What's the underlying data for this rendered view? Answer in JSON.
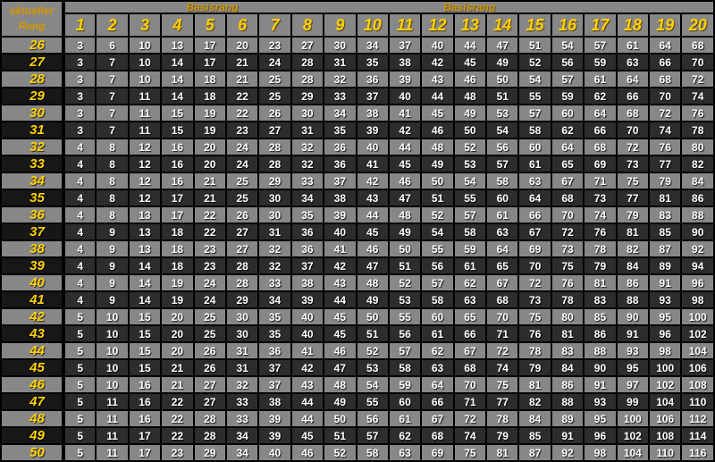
{
  "header": {
    "corner_line1": "aktueller",
    "corner_line2": "Rang",
    "band_labels": [
      "Basisrang",
      "Basisrang"
    ],
    "columns": [
      "1",
      "2",
      "3",
      "4",
      "5",
      "6",
      "7",
      "8",
      "9",
      "10",
      "11",
      "12",
      "13",
      "14",
      "15",
      "16",
      "17",
      "18",
      "19",
      "20"
    ]
  },
  "rows": [
    {
      "rank": "26",
      "values": [
        3,
        6,
        10,
        13,
        17,
        20,
        23,
        27,
        30,
        34,
        37,
        40,
        44,
        47,
        51,
        54,
        57,
        61,
        64,
        68
      ]
    },
    {
      "rank": "27",
      "values": [
        3,
        7,
        10,
        14,
        17,
        21,
        24,
        28,
        31,
        35,
        38,
        42,
        45,
        49,
        52,
        56,
        59,
        63,
        66,
        70
      ]
    },
    {
      "rank": "28",
      "values": [
        3,
        7,
        10,
        14,
        18,
        21,
        25,
        28,
        32,
        36,
        39,
        43,
        46,
        50,
        54,
        57,
        61,
        64,
        68,
        72
      ]
    },
    {
      "rank": "29",
      "values": [
        3,
        7,
        11,
        14,
        18,
        22,
        25,
        29,
        33,
        37,
        40,
        44,
        48,
        51,
        55,
        59,
        62,
        66,
        70,
        74
      ]
    },
    {
      "rank": "30",
      "values": [
        3,
        7,
        11,
        15,
        19,
        22,
        26,
        30,
        34,
        38,
        41,
        45,
        49,
        53,
        57,
        60,
        64,
        68,
        72,
        76
      ]
    },
    {
      "rank": "31",
      "values": [
        3,
        7,
        11,
        15,
        19,
        23,
        27,
        31,
        35,
        39,
        42,
        46,
        50,
        54,
        58,
        62,
        66,
        70,
        74,
        78
      ]
    },
    {
      "rank": "32",
      "values": [
        4,
        8,
        12,
        16,
        20,
        24,
        28,
        32,
        36,
        40,
        44,
        48,
        52,
        56,
        60,
        64,
        68,
        72,
        76,
        80
      ]
    },
    {
      "rank": "33",
      "values": [
        4,
        8,
        12,
        16,
        20,
        24,
        28,
        32,
        36,
        41,
        45,
        49,
        53,
        57,
        61,
        65,
        69,
        73,
        77,
        82
      ]
    },
    {
      "rank": "34",
      "values": [
        4,
        8,
        12,
        16,
        21,
        25,
        29,
        33,
        37,
        42,
        46,
        50,
        54,
        58,
        63,
        67,
        71,
        75,
        79,
        84
      ]
    },
    {
      "rank": "35",
      "values": [
        4,
        8,
        12,
        17,
        21,
        25,
        30,
        34,
        38,
        43,
        47,
        51,
        55,
        60,
        64,
        68,
        73,
        77,
        81,
        86
      ]
    },
    {
      "rank": "36",
      "values": [
        4,
        8,
        13,
        17,
        22,
        26,
        30,
        35,
        39,
        44,
        48,
        52,
        57,
        61,
        66,
        70,
        74,
        79,
        83,
        88
      ]
    },
    {
      "rank": "37",
      "values": [
        4,
        9,
        13,
        18,
        22,
        27,
        31,
        36,
        40,
        45,
        49,
        54,
        58,
        63,
        67,
        72,
        76,
        81,
        85,
        90
      ]
    },
    {
      "rank": "38",
      "values": [
        4,
        9,
        13,
        18,
        23,
        27,
        32,
        36,
        41,
        46,
        50,
        55,
        59,
        64,
        69,
        73,
        78,
        82,
        87,
        92
      ]
    },
    {
      "rank": "39",
      "values": [
        4,
        9,
        14,
        18,
        23,
        28,
        32,
        37,
        42,
        47,
        51,
        56,
        61,
        65,
        70,
        75,
        79,
        84,
        89,
        94
      ]
    },
    {
      "rank": "40",
      "values": [
        4,
        9,
        14,
        19,
        24,
        28,
        33,
        38,
        43,
        48,
        52,
        57,
        62,
        67,
        72,
        76,
        81,
        86,
        91,
        96
      ]
    },
    {
      "rank": "41",
      "values": [
        4,
        9,
        14,
        19,
        24,
        29,
        34,
        39,
        44,
        49,
        53,
        58,
        63,
        68,
        73,
        78,
        83,
        88,
        93,
        98
      ]
    },
    {
      "rank": "42",
      "values": [
        5,
        10,
        15,
        20,
        25,
        30,
        35,
        40,
        45,
        50,
        55,
        60,
        65,
        70,
        75,
        80,
        85,
        90,
        95,
        100
      ]
    },
    {
      "rank": "43",
      "values": [
        5,
        10,
        15,
        20,
        25,
        30,
        35,
        40,
        45,
        51,
        56,
        61,
        66,
        71,
        76,
        81,
        86,
        91,
        96,
        102
      ]
    },
    {
      "rank": "44",
      "values": [
        5,
        10,
        15,
        20,
        26,
        31,
        36,
        41,
        46,
        52,
        57,
        62,
        67,
        72,
        78,
        83,
        88,
        93,
        98,
        104
      ]
    },
    {
      "rank": "45",
      "values": [
        5,
        10,
        15,
        21,
        26,
        31,
        37,
        42,
        47,
        53,
        58,
        63,
        68,
        74,
        79,
        84,
        90,
        95,
        100,
        106
      ]
    },
    {
      "rank": "46",
      "values": [
        5,
        10,
        16,
        21,
        27,
        32,
        37,
        43,
        48,
        54,
        59,
        64,
        70,
        75,
        81,
        86,
        91,
        97,
        102,
        108
      ]
    },
    {
      "rank": "47",
      "values": [
        5,
        11,
        16,
        22,
        27,
        33,
        38,
        44,
        49,
        55,
        60,
        66,
        71,
        77,
        82,
        88,
        93,
        99,
        104,
        110
      ]
    },
    {
      "rank": "48",
      "values": [
        5,
        11,
        16,
        22,
        28,
        33,
        39,
        44,
        50,
        56,
        61,
        67,
        72,
        78,
        84,
        89,
        95,
        100,
        106,
        112
      ]
    },
    {
      "rank": "49",
      "values": [
        5,
        11,
        17,
        22,
        28,
        34,
        39,
        45,
        51,
        57,
        62,
        68,
        74,
        79,
        85,
        91,
        96,
        102,
        108,
        114
      ]
    },
    {
      "rank": "50",
      "values": [
        5,
        11,
        17,
        23,
        29,
        34,
        40,
        46,
        52,
        58,
        63,
        69,
        75,
        81,
        87,
        92,
        98,
        104,
        110,
        116
      ]
    }
  ],
  "colors": {
    "grid": "#000000",
    "gray_cell": "#878787",
    "dark_cell": "#2d2d2d",
    "dark_rank_cell": "#171717",
    "header_text": "#D49600",
    "rank_text": "#FFD100",
    "value_text": "#FFFFFF"
  }
}
